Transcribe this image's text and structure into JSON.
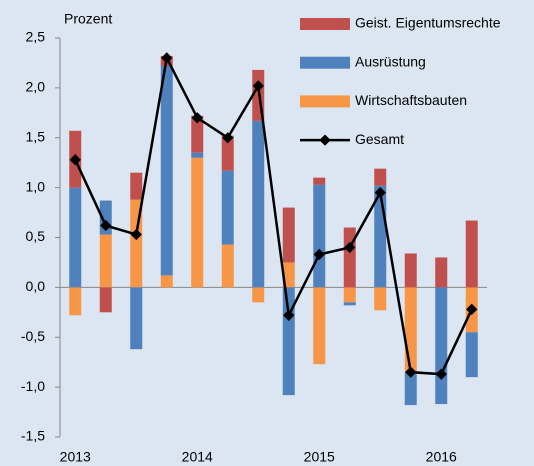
{
  "chart_data": {
    "type": "bar",
    "stacked": true,
    "y_unit_label": "Prozent",
    "categories": [
      "2013",
      null,
      null,
      null,
      "2014",
      null,
      null,
      null,
      "2015",
      null,
      null,
      null,
      "2016",
      null
    ],
    "series": [
      {
        "name": "Geist. Eigentumsrechte",
        "color": "#c0504d",
        "values": [
          0.57,
          -0.25,
          0.27,
          0.1,
          0.37,
          0.35,
          0.51,
          0.55,
          0.07,
          0.6,
          0.17,
          0.34,
          0.3,
          0.67
        ]
      },
      {
        "name": "Ausrüstung",
        "color": "#4f81bd",
        "values": [
          1.0,
          0.34,
          -0.62,
          2.1,
          0.05,
          0.74,
          1.67,
          -1.08,
          1.03,
          -0.03,
          1.02,
          -0.33,
          -1.17,
          -0.45
        ]
      },
      {
        "name": "Wirtschaftsbauten",
        "color": "#f79646",
        "values": [
          -0.28,
          0.53,
          0.88,
          0.12,
          1.3,
          0.43,
          -0.15,
          0.25,
          -0.77,
          -0.15,
          -0.23,
          -0.85,
          0.0,
          -0.45
        ]
      },
      {
        "name": "Gesamt",
        "type": "line",
        "color": "#000000",
        "values": [
          1.28,
          0.62,
          0.53,
          2.3,
          1.7,
          1.5,
          2.02,
          -0.28,
          0.33,
          0.4,
          0.95,
          -0.85,
          -0.87,
          -0.22
        ]
      }
    ],
    "ylim": [
      -1.5,
      2.5
    ],
    "yticks": [
      {
        "value": -1.5,
        "label": "-1,5"
      },
      {
        "value": -1.0,
        "label": "-1,0"
      },
      {
        "value": -0.5,
        "label": "-0,5"
      },
      {
        "value": 0,
        "label": "0,0"
      },
      {
        "value": 0.5,
        "label": "0,5"
      },
      {
        "value": 1.0,
        "label": "1,0"
      },
      {
        "value": 1.5,
        "label": "1,5"
      },
      {
        "value": 2.0,
        "label": "2,0"
      },
      {
        "value": 2.5,
        "label": "2,5"
      }
    ],
    "grid": false,
    "legend": "top-right"
  }
}
